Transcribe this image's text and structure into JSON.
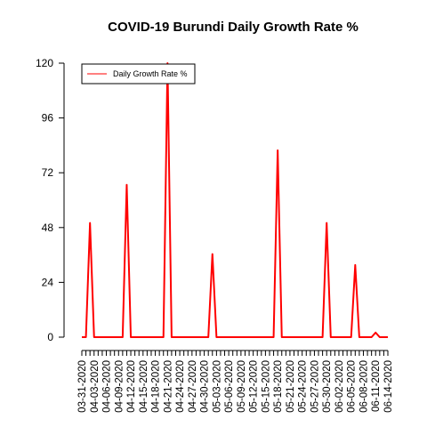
{
  "chart_data": {
    "type": "line",
    "title": "COVID-19 Burundi Daily Growth Rate %",
    "xlabel": "",
    "ylabel": "",
    "ylim": [
      0,
      120
    ],
    "yticks": [
      0,
      24,
      48,
      72,
      96,
      120
    ],
    "grid": false,
    "legend": {
      "position": "top-left",
      "entries": [
        "Daily Growth Rate %"
      ]
    },
    "x_tick_labels": [
      "03-31-2020",
      "04-03-2020",
      "04-06-2020",
      "04-09-2020",
      "04-12-2020",
      "04-15-2020",
      "04-18-2020",
      "04-21-2020",
      "04-24-2020",
      "04-27-2020",
      "04-30-2020",
      "05-03-2020",
      "05-06-2020",
      "05-09-2020",
      "05-12-2020",
      "05-15-2020",
      "05-18-2020",
      "05-21-2020",
      "05-24-2020",
      "05-27-2020",
      "05-30-2020",
      "06-02-2020",
      "06-05-2020",
      "06-08-2020",
      "06-11-2020",
      "06-14-2020"
    ],
    "series": [
      {
        "name": "Daily Growth Rate %",
        "color": "#ff0000",
        "x": [
          "03-31-2020",
          "04-01-2020",
          "04-02-2020",
          "04-03-2020",
          "04-04-2020",
          "04-05-2020",
          "04-06-2020",
          "04-07-2020",
          "04-08-2020",
          "04-09-2020",
          "04-10-2020",
          "04-11-2020",
          "04-12-2020",
          "04-13-2020",
          "04-14-2020",
          "04-15-2020",
          "04-16-2020",
          "04-17-2020",
          "04-18-2020",
          "04-19-2020",
          "04-20-2020",
          "04-21-2020",
          "04-22-2020",
          "04-23-2020",
          "04-24-2020",
          "04-25-2020",
          "04-26-2020",
          "04-27-2020",
          "04-28-2020",
          "04-29-2020",
          "04-30-2020",
          "05-01-2020",
          "05-02-2020",
          "05-03-2020",
          "05-04-2020",
          "05-05-2020",
          "05-06-2020",
          "05-07-2020",
          "05-08-2020",
          "05-09-2020",
          "05-10-2020",
          "05-11-2020",
          "05-12-2020",
          "05-13-2020",
          "05-14-2020",
          "05-15-2020",
          "05-16-2020",
          "05-17-2020",
          "05-18-2020",
          "05-19-2020",
          "05-20-2020",
          "05-21-2020",
          "05-22-2020",
          "05-23-2020",
          "05-24-2020",
          "05-25-2020",
          "05-26-2020",
          "05-27-2020",
          "05-28-2020",
          "05-29-2020",
          "05-30-2020",
          "05-31-2020",
          "06-01-2020",
          "06-02-2020",
          "06-03-2020",
          "06-04-2020",
          "06-05-2020",
          "06-06-2020",
          "06-07-2020",
          "06-08-2020",
          "06-09-2020",
          "06-10-2020",
          "06-11-2020",
          "06-12-2020",
          "06-13-2020",
          "06-14-2020"
        ],
        "values": [
          0,
          0,
          50,
          0,
          0,
          0,
          0,
          0,
          0,
          0,
          0,
          66.7,
          0,
          0,
          0,
          0,
          0,
          0,
          0,
          0,
          0,
          120,
          0,
          0,
          0,
          0,
          0,
          0,
          0,
          0,
          0,
          0,
          36.4,
          0,
          0,
          0,
          0,
          0,
          0,
          0,
          0,
          0,
          0,
          0,
          0,
          0,
          0,
          0,
          81.8,
          0,
          0,
          0,
          0,
          0,
          0,
          0,
          0,
          0,
          0,
          0,
          50,
          0,
          0,
          0,
          0,
          0,
          0,
          31.6,
          0,
          0,
          0,
          0,
          2,
          0,
          0,
          0
        ]
      }
    ]
  }
}
